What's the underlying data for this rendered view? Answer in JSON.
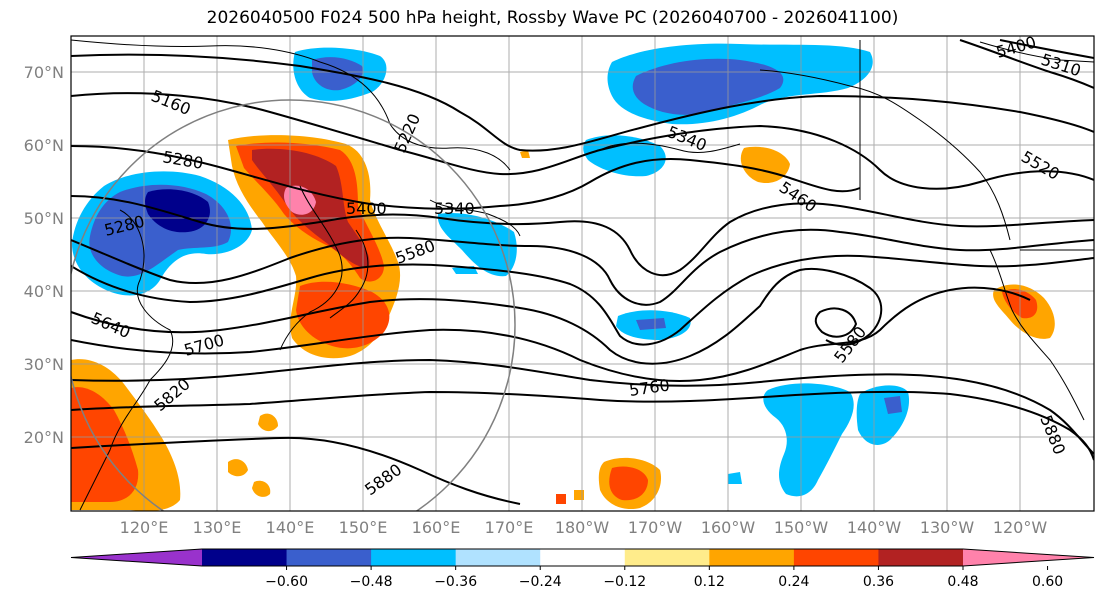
{
  "title": "2026040500 F024 500 hPa height, Rossby Wave PC (2026040700 - 2026041100)",
  "latitude_labels": [
    "70°N",
    "60°N",
    "50°N",
    "40°N",
    "30°N",
    "20°N"
  ],
  "longitude_labels": [
    "120°E",
    "130°E",
    "140°E",
    "150°E",
    "160°E",
    "170°E",
    "180°W",
    "170°W",
    "160°W",
    "150°W",
    "140°W",
    "130°W",
    "120°W"
  ],
  "contour_labels": [
    "5160",
    "5280",
    "5280",
    "5400",
    "5340",
    "5220",
    "5340",
    "5460",
    "5520",
    "5400",
    "5310",
    "5580",
    "5640",
    "5700",
    "5820",
    "5880",
    "5760",
    "5580",
    "5880"
  ],
  "colorbar": {
    "ticks": [
      "−0.60",
      "−0.48",
      "−0.36",
      "−0.24",
      "−0.12",
      "0.12",
      "0.24",
      "0.36",
      "0.48",
      "0.60"
    ],
    "colors": [
      "#9932cc",
      "#00008b",
      "#3a5fcd",
      "#00bfff",
      "#b0e2ff",
      "#ffffff",
      "#ffec8b",
      "#ffa500",
      "#ff4500",
      "#b22222",
      "#ff82ab"
    ]
  }
}
